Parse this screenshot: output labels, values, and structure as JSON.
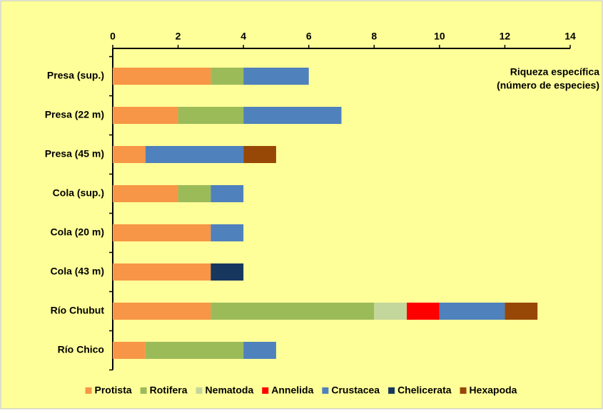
{
  "chart_data": {
    "type": "stacked-barh",
    "x_label": [
      "Riqueza específica",
      "(número de especies)"
    ],
    "categories": [
      "Presa (sup.)",
      "Presa (22 m)",
      "Presa (45 m)",
      "Cola (sup.)",
      "Cola (20 m)",
      "Cola (43 m)",
      "Río Chubut",
      "Río Chico"
    ],
    "series": [
      {
        "name": "Protista",
        "color": "#F79646",
        "values": [
          3,
          2,
          1,
          2,
          3,
          3,
          3,
          1
        ]
      },
      {
        "name": "Rotifera",
        "color": "#9BBB59",
        "values": [
          1,
          2,
          0,
          1,
          0,
          0,
          5,
          3
        ]
      },
      {
        "name": "Nematoda",
        "color": "#C3D69B",
        "values": [
          0,
          0,
          0,
          0,
          0,
          0,
          1,
          0
        ]
      },
      {
        "name": "Annelida",
        "color": "#FF0000",
        "values": [
          0,
          0,
          0,
          0,
          0,
          0,
          1,
          0
        ]
      },
      {
        "name": "Crustacea",
        "color": "#4F81BD",
        "values": [
          2,
          3,
          3,
          1,
          1,
          0,
          2,
          1
        ]
      },
      {
        "name": "Chelicerata",
        "color": "#17375E",
        "values": [
          0,
          0,
          0,
          0,
          0,
          1,
          0,
          0
        ]
      },
      {
        "name": "Hexapoda",
        "color": "#974706",
        "values": [
          0,
          0,
          1,
          0,
          0,
          0,
          1,
          0
        ]
      }
    ],
    "xlim": [
      0,
      14
    ],
    "xticks": [
      0,
      2,
      4,
      6,
      8,
      10,
      12,
      14
    ],
    "legend": "bottom"
  }
}
